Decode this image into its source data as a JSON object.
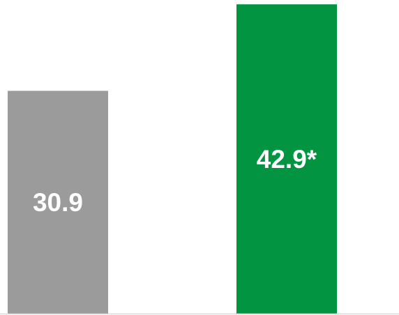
{
  "chart_data": {
    "type": "bar",
    "categories": [
      "",
      ""
    ],
    "values": [
      30.9,
      42.9
    ],
    "data_labels": [
      "30.9",
      "42.9*"
    ],
    "colors": [
      "#9b9b9b",
      "#039442"
    ],
    "ylim": [
      0,
      43.5
    ],
    "grid": false,
    "legend": "none"
  },
  "colors": {
    "baseline": "#d9d9d9",
    "label": "#ffffff"
  }
}
